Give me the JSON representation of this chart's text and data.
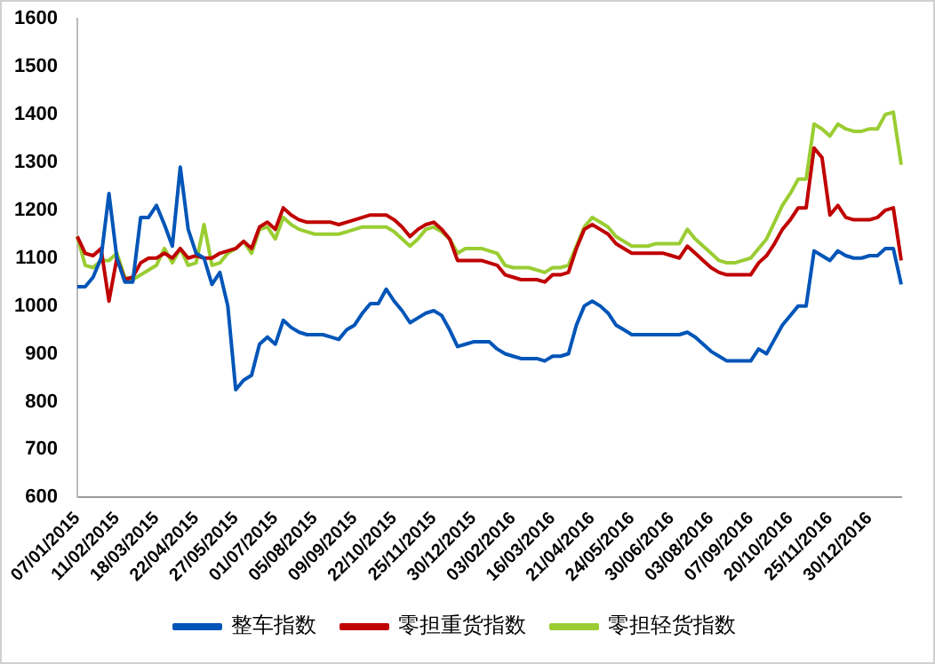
{
  "chart_data": {
    "type": "line",
    "categories": [
      "07/01/2015",
      null,
      null,
      null,
      null,
      "11/02/2015",
      null,
      null,
      null,
      null,
      "18/03/2015",
      null,
      null,
      null,
      null,
      "22/04/2015",
      null,
      null,
      null,
      null,
      "27/05/2015",
      null,
      null,
      null,
      null,
      "01/07/2015",
      null,
      null,
      null,
      null,
      "05/08/2015",
      null,
      null,
      null,
      null,
      "09/09/2015",
      null,
      null,
      null,
      null,
      "22/10/2015",
      null,
      null,
      null,
      null,
      "25/11/2015",
      null,
      null,
      null,
      null,
      "30/12/2015",
      null,
      null,
      null,
      null,
      "03/02/2016",
      null,
      null,
      null,
      null,
      "16/03/2016",
      null,
      null,
      null,
      null,
      "21/04/2016",
      null,
      null,
      null,
      null,
      "24/05/2016",
      null,
      null,
      null,
      null,
      "30/06/2016",
      null,
      null,
      null,
      null,
      "03/08/2016",
      null,
      null,
      null,
      null,
      "07/09/2016",
      null,
      null,
      null,
      null,
      "20/10/2016",
      null,
      null,
      null,
      null,
      "25/11/2016",
      null,
      null,
      null,
      null,
      "30/12/2016",
      null,
      null,
      null,
      null
    ],
    "series": [
      {
        "name": "整车指数",
        "color": "#0055b8",
        "values": [
          1040,
          1040,
          1060,
          1100,
          1235,
          1100,
          1050,
          1050,
          1185,
          1185,
          1210,
          1170,
          1125,
          1290,
          1160,
          1110,
          1100,
          1045,
          1070,
          1000,
          825,
          845,
          855,
          920,
          935,
          920,
          970,
          955,
          945,
          940,
          940,
          940,
          935,
          930,
          950,
          960,
          985,
          1005,
          1005,
          1035,
          1010,
          990,
          965,
          975,
          985,
          990,
          980,
          950,
          915,
          920,
          925,
          925,
          925,
          910,
          900,
          895,
          890,
          890,
          890,
          885,
          895,
          895,
          900,
          960,
          1000,
          1010,
          1000,
          985,
          960,
          950,
          940,
          940,
          940,
          940,
          940,
          940,
          940,
          945,
          935,
          920,
          905,
          895,
          885,
          885,
          885,
          885,
          910,
          900,
          930,
          960,
          980,
          1000,
          1000,
          1115,
          1105,
          1095,
          1115,
          1105,
          1100,
          1100,
          1105,
          1105,
          1120,
          1120,
          1045
        ]
      },
      {
        "name": "零担重货指数",
        "color": "#c00000",
        "values": [
          1145,
          1110,
          1105,
          1120,
          1010,
          1100,
          1055,
          1060,
          1090,
          1100,
          1100,
          1110,
          1100,
          1120,
          1100,
          1105,
          1100,
          1100,
          1110,
          1115,
          1120,
          1135,
          1120,
          1165,
          1175,
          1160,
          1205,
          1190,
          1180,
          1175,
          1175,
          1175,
          1175,
          1170,
          1175,
          1180,
          1185,
          1190,
          1190,
          1190,
          1180,
          1165,
          1145,
          1160,
          1170,
          1175,
          1160,
          1140,
          1095,
          1095,
          1095,
          1095,
          1090,
          1085,
          1065,
          1060,
          1055,
          1055,
          1055,
          1050,
          1065,
          1065,
          1070,
          1120,
          1160,
          1170,
          1160,
          1150,
          1130,
          1120,
          1110,
          1110,
          1110,
          1110,
          1110,
          1105,
          1100,
          1125,
          1110,
          1095,
          1080,
          1070,
          1065,
          1065,
          1065,
          1065,
          1090,
          1105,
          1130,
          1160,
          1180,
          1205,
          1205,
          1330,
          1310,
          1190,
          1210,
          1185,
          1180,
          1180,
          1180,
          1185,
          1200,
          1205,
          1095
        ]
      },
      {
        "name": "零担轻货指数",
        "color": "#9acd32",
        "values": [
          1145,
          1085,
          1080,
          1095,
          1095,
          1110,
          1060,
          1055,
          1065,
          1075,
          1085,
          1120,
          1090,
          1120,
          1085,
          1090,
          1170,
          1085,
          1090,
          1110,
          1120,
          1135,
          1110,
          1160,
          1165,
          1140,
          1185,
          1170,
          1160,
          1155,
          1150,
          1150,
          1150,
          1150,
          1155,
          1160,
          1165,
          1165,
          1165,
          1165,
          1155,
          1140,
          1125,
          1140,
          1160,
          1165,
          1155,
          1140,
          1110,
          1120,
          1120,
          1120,
          1115,
          1110,
          1085,
          1080,
          1080,
          1080,
          1075,
          1070,
          1080,
          1080,
          1085,
          1125,
          1165,
          1185,
          1175,
          1165,
          1145,
          1135,
          1125,
          1125,
          1125,
          1130,
          1130,
          1130,
          1130,
          1160,
          1140,
          1125,
          1110,
          1095,
          1090,
          1090,
          1095,
          1100,
          1120,
          1140,
          1175,
          1210,
          1235,
          1265,
          1265,
          1380,
          1370,
          1355,
          1380,
          1370,
          1365,
          1365,
          1370,
          1370,
          1400,
          1405,
          1295
        ]
      }
    ],
    "ylim": [
      600,
      1600
    ],
    "yticks": [
      600,
      700,
      800,
      900,
      1000,
      1100,
      1200,
      1300,
      1400,
      1500,
      1600
    ],
    "grid": false,
    "legend": "bottom",
    "marker": "none",
    "line_style": "solid"
  }
}
